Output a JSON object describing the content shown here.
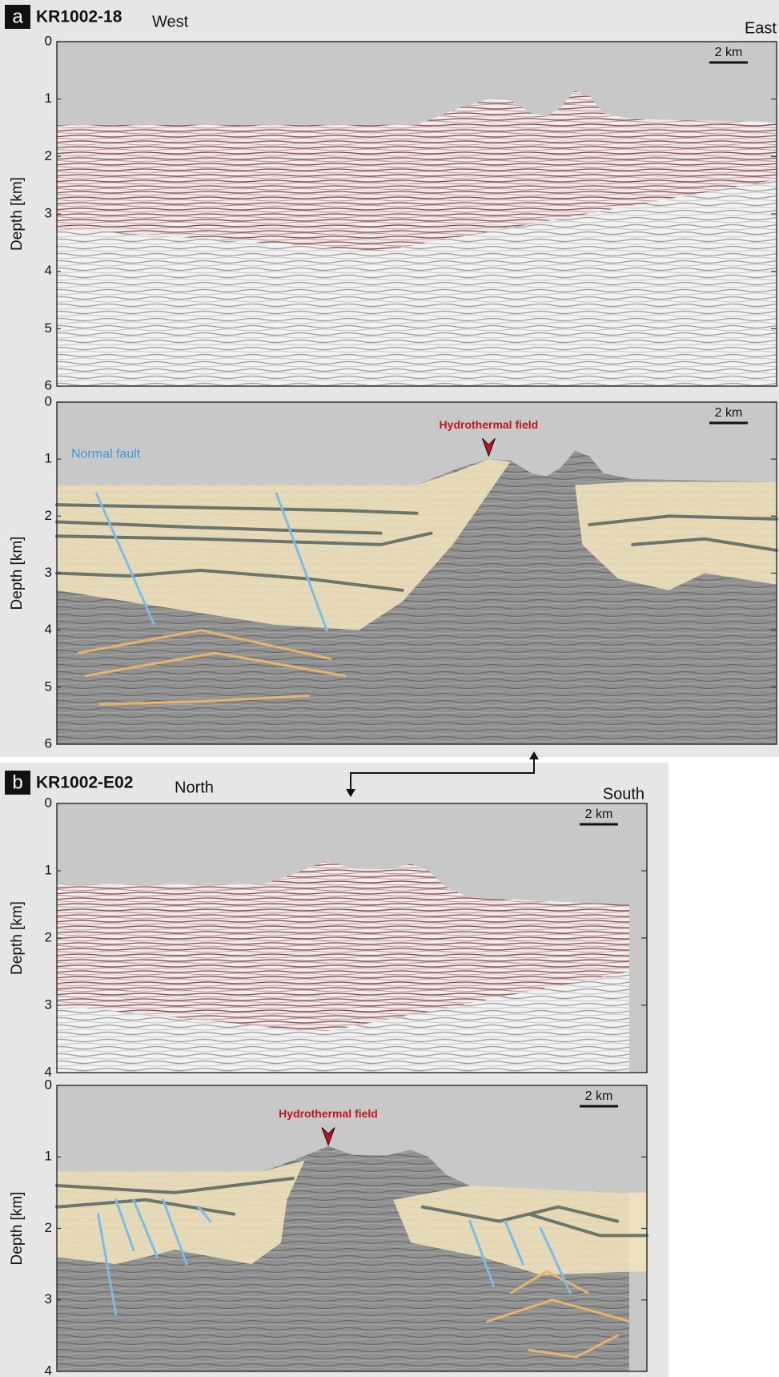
{
  "panels": [
    {
      "label": "a",
      "line": "KR1002-18",
      "left_direction": "West",
      "right_direction": "East",
      "sections": [
        {
          "y_label": "Depth [km]",
          "ylim": [
            0,
            6
          ],
          "yticks": [
            0,
            1,
            2,
            3,
            4,
            5,
            6
          ],
          "scale_bar": "2 km"
        },
        {
          "y_label": "Depth [km]",
          "ylim": [
            0,
            6
          ],
          "yticks": [
            0,
            1,
            2,
            3,
            4,
            5,
            6
          ],
          "scale_bar": "2 km",
          "annotations": [
            "Normal fault",
            "Hydrothermal field"
          ]
        }
      ]
    },
    {
      "label": "b",
      "line": "KR1002-E02",
      "left_direction": "North",
      "right_direction": "South",
      "sections": [
        {
          "y_label": "Depth [km]",
          "ylim": [
            0,
            4
          ],
          "yticks": [
            0,
            1,
            2,
            3,
            4
          ],
          "scale_bar": "2 km"
        },
        {
          "y_label": "Depth [km]",
          "ylim": [
            0,
            4
          ],
          "yticks": [
            0,
            1,
            2,
            3,
            4
          ],
          "scale_bar": "2 km",
          "annotations": [
            "Hydrothermal field"
          ]
        }
      ]
    }
  ]
}
